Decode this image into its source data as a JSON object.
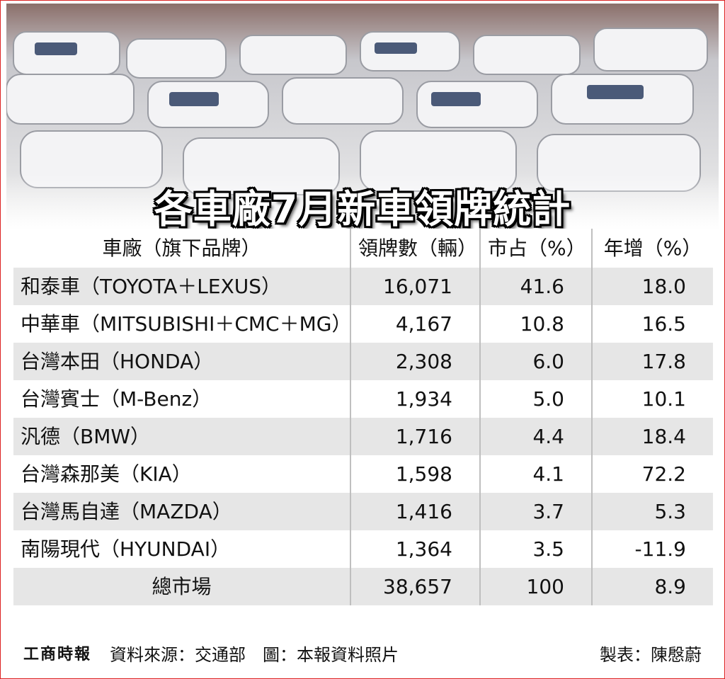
{
  "title": "各車廠7月新車領牌統計",
  "table": {
    "header": [
      "車廠（旗下品牌）",
      "領牌數（輛）",
      "市占（%）",
      "年增（%）"
    ],
    "rows": [
      [
        "和泰車（TOYOTA＋LEXUS）",
        "16,071",
        "41.6",
        "18.0"
      ],
      [
        "中華車（MITSUBISHI＋CMC＋MG）",
        "4,167",
        "10.8",
        "16.5"
      ],
      [
        "台灣本田（HONDA）",
        "2,308",
        "6.0",
        "17.8"
      ],
      [
        "台灣賓士（M-Benz）",
        "1,934",
        "5.0",
        "10.1"
      ],
      [
        "汎德（BMW）",
        "1,716",
        "4.4",
        "18.4"
      ],
      [
        "台灣森那美（KIA）",
        "1,598",
        "4.1",
        "72.2"
      ],
      [
        "台灣馬自達（MAZDA）",
        "1,416",
        "3.7",
        "5.3"
      ],
      [
        "南陽現代（HYUNDAI）",
        "1,364",
        "3.5",
        "-11.9"
      ]
    ],
    "total": [
      "總市場",
      "38,657",
      "100",
      "8.9"
    ]
  },
  "footer": {
    "logo": "工商時報",
    "source": "資料來源：交通部　圖：本報資料照片",
    "credit": "製表：陳慇蔚"
  }
}
